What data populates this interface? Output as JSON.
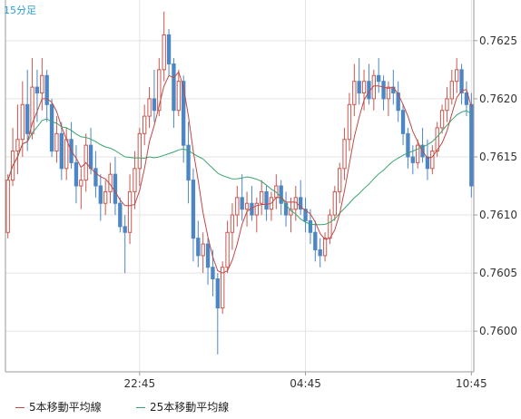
{
  "timeframe_label": "15分足",
  "colors": {
    "up": "#c9574e",
    "down": "#4c86c4",
    "ma5": "#c04848",
    "ma25": "#3aa56f",
    "grid": "#e3e3e3",
    "axis": "#9a9a9a",
    "timeframe": "#2a9fd6"
  },
  "chart_data": {
    "type": "candlestick",
    "y_range": [
      0.75965,
      0.76285
    ],
    "y_ticks": [
      "0.7600",
      "0.7605",
      "0.7610",
      "0.7615",
      "0.7620",
      "0.7625"
    ],
    "y_tick_values": [
      0.76,
      0.7605,
      0.761,
      0.7615,
      0.762,
      0.7625
    ],
    "x_ticks": [
      {
        "label": "22:45",
        "index": 27
      },
      {
        "label": "04:45",
        "index": 61
      },
      {
        "label": "10:45",
        "index": 95
      }
    ],
    "grid": true,
    "legend_position": "bottom",
    "series": [
      {
        "name": "5本移動平均線",
        "color": "#c04848"
      },
      {
        "name": "25本移動平均線",
        "color": "#3aa56f"
      }
    ],
    "candles": [
      [
        0.76085,
        0.76135,
        0.7608,
        0.7613
      ],
      [
        0.7613,
        0.76175,
        0.76125,
        0.76155
      ],
      [
        0.76155,
        0.76195,
        0.76135,
        0.76165
      ],
      [
        0.76165,
        0.76215,
        0.7615,
        0.76195
      ],
      [
        0.76195,
        0.76225,
        0.76155,
        0.7617
      ],
      [
        0.7617,
        0.76235,
        0.76165,
        0.7621
      ],
      [
        0.7621,
        0.76225,
        0.7618,
        0.76205
      ],
      [
        0.76205,
        0.76235,
        0.7619,
        0.7622
      ],
      [
        0.7622,
        0.76225,
        0.7618,
        0.76195
      ],
      [
        0.76195,
        0.762,
        0.7615,
        0.76155
      ],
      [
        0.76155,
        0.76185,
        0.76145,
        0.7617
      ],
      [
        0.7617,
        0.7618,
        0.7613,
        0.7614
      ],
      [
        0.7614,
        0.76175,
        0.7613,
        0.76165
      ],
      [
        0.76165,
        0.7618,
        0.7614,
        0.76145
      ],
      [
        0.76145,
        0.7616,
        0.7611,
        0.76125
      ],
      [
        0.76125,
        0.7614,
        0.76105,
        0.7613
      ],
      [
        0.7613,
        0.7617,
        0.7612,
        0.7616
      ],
      [
        0.7616,
        0.76175,
        0.76135,
        0.7614
      ],
      [
        0.7614,
        0.76155,
        0.76115,
        0.76125
      ],
      [
        0.76125,
        0.76135,
        0.76095,
        0.7611
      ],
      [
        0.7611,
        0.7613,
        0.761,
        0.7612
      ],
      [
        0.7612,
        0.76145,
        0.7611,
        0.76135
      ],
      [
        0.76135,
        0.7615,
        0.761,
        0.7611
      ],
      [
        0.7611,
        0.76115,
        0.76085,
        0.7609
      ],
      [
        0.7609,
        0.761,
        0.7605,
        0.76085
      ],
      [
        0.76085,
        0.76135,
        0.76075,
        0.7612
      ],
      [
        0.7612,
        0.76155,
        0.76105,
        0.7614
      ],
      [
        0.7614,
        0.76175,
        0.76125,
        0.7617
      ],
      [
        0.7617,
        0.76195,
        0.7616,
        0.76185
      ],
      [
        0.76185,
        0.7621,
        0.76175,
        0.762
      ],
      [
        0.762,
        0.76225,
        0.7618,
        0.7619
      ],
      [
        0.7619,
        0.76235,
        0.76185,
        0.76225
      ],
      [
        0.76225,
        0.76275,
        0.76215,
        0.76255
      ],
      [
        0.76255,
        0.7626,
        0.7622,
        0.7623
      ],
      [
        0.7623,
        0.76235,
        0.76175,
        0.7619
      ],
      [
        0.7619,
        0.76225,
        0.76185,
        0.76215
      ],
      [
        0.76215,
        0.7622,
        0.76145,
        0.7616
      ],
      [
        0.7616,
        0.7618,
        0.7611,
        0.7613
      ],
      [
        0.7613,
        0.7614,
        0.7606,
        0.7608
      ],
      [
        0.7608,
        0.76095,
        0.76055,
        0.76065
      ],
      [
        0.76065,
        0.76085,
        0.7605,
        0.76075
      ],
      [
        0.76075,
        0.7608,
        0.7604,
        0.76055
      ],
      [
        0.76055,
        0.7607,
        0.7603,
        0.76045
      ],
      [
        0.76045,
        0.7605,
        0.7598,
        0.7602
      ],
      [
        0.7602,
        0.7606,
        0.76015,
        0.76055
      ],
      [
        0.76055,
        0.76095,
        0.7605,
        0.76085
      ],
      [
        0.76085,
        0.7611,
        0.7607,
        0.761
      ],
      [
        0.761,
        0.76125,
        0.7609,
        0.76115
      ],
      [
        0.76115,
        0.76135,
        0.76095,
        0.76105
      ],
      [
        0.76105,
        0.7612,
        0.7609,
        0.7611
      ],
      [
        0.7611,
        0.76125,
        0.76095,
        0.761
      ],
      [
        0.761,
        0.76115,
        0.76085,
        0.7611
      ],
      [
        0.7611,
        0.7613,
        0.761,
        0.7612
      ],
      [
        0.7612,
        0.76125,
        0.76095,
        0.76105
      ],
      [
        0.76105,
        0.7612,
        0.76095,
        0.76115
      ],
      [
        0.76115,
        0.76135,
        0.76105,
        0.76125
      ],
      [
        0.76125,
        0.7613,
        0.761,
        0.7611
      ],
      [
        0.7611,
        0.7612,
        0.7609,
        0.761
      ],
      [
        0.761,
        0.76115,
        0.76085,
        0.76105
      ],
      [
        0.76105,
        0.76125,
        0.76095,
        0.76115
      ],
      [
        0.76115,
        0.7613,
        0.761,
        0.76105
      ],
      [
        0.76105,
        0.76115,
        0.76085,
        0.76095
      ],
      [
        0.76095,
        0.76105,
        0.76075,
        0.76085
      ],
      [
        0.76085,
        0.76095,
        0.7606,
        0.7607
      ],
      [
        0.7607,
        0.7608,
        0.76055,
        0.76065
      ],
      [
        0.76065,
        0.76085,
        0.7606,
        0.7608
      ],
      [
        0.7608,
        0.76105,
        0.76075,
        0.761
      ],
      [
        0.761,
        0.76125,
        0.76095,
        0.7612
      ],
      [
        0.7612,
        0.76145,
        0.7611,
        0.7614
      ],
      [
        0.7614,
        0.76175,
        0.7613,
        0.76165
      ],
      [
        0.76165,
        0.76205,
        0.76155,
        0.76195
      ],
      [
        0.76195,
        0.7623,
        0.76185,
        0.76215
      ],
      [
        0.76215,
        0.76235,
        0.76195,
        0.76205
      ],
      [
        0.76205,
        0.76225,
        0.7619,
        0.76215
      ],
      [
        0.76215,
        0.7623,
        0.76195,
        0.762
      ],
      [
        0.762,
        0.76225,
        0.7619,
        0.7622
      ],
      [
        0.7622,
        0.76235,
        0.76205,
        0.76215
      ],
      [
        0.76215,
        0.7622,
        0.7619,
        0.762
      ],
      [
        0.762,
        0.76215,
        0.76185,
        0.7621
      ],
      [
        0.7621,
        0.76225,
        0.76195,
        0.76205
      ],
      [
        0.76205,
        0.76215,
        0.7618,
        0.7619
      ],
      [
        0.7619,
        0.76195,
        0.7616,
        0.7617
      ],
      [
        0.7617,
        0.76175,
        0.7614,
        0.7615
      ],
      [
        0.7615,
        0.7616,
        0.76135,
        0.76145
      ],
      [
        0.76145,
        0.76165,
        0.7614,
        0.7616
      ],
      [
        0.7616,
        0.76175,
        0.76145,
        0.7615
      ],
      [
        0.7615,
        0.76165,
        0.7613,
        0.7614
      ],
      [
        0.7614,
        0.7616,
        0.76135,
        0.76155
      ],
      [
        0.76155,
        0.7618,
        0.7615,
        0.76175
      ],
      [
        0.76175,
        0.76195,
        0.7617,
        0.7619
      ],
      [
        0.7619,
        0.7621,
        0.7618,
        0.762
      ],
      [
        0.762,
        0.76225,
        0.76195,
        0.76215
      ],
      [
        0.76215,
        0.76235,
        0.76205,
        0.76225
      ],
      [
        0.76225,
        0.7623,
        0.76195,
        0.76205
      ],
      [
        0.76205,
        0.76215,
        0.76185,
        0.76195
      ],
      [
        0.76195,
        0.76205,
        0.76115,
        0.76125
      ]
    ]
  }
}
